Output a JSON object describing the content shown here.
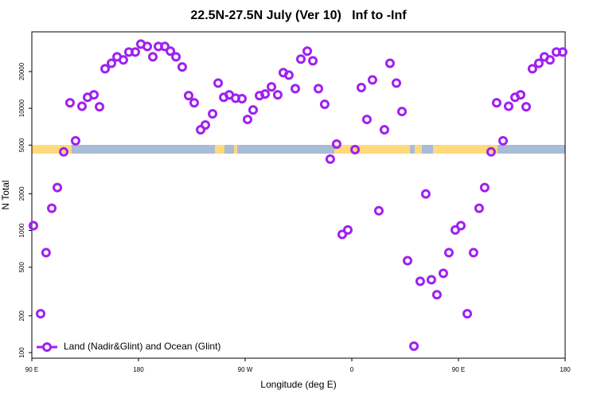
{
  "chart_data": {
    "type": "scatter",
    "title": "22.5N-27.5N July (Ver 10)   Inf to -Inf",
    "x_label": "Longitude (deg E)",
    "y_label": "N Total",
    "x": [
      91.3,
      97.4,
      102,
      106.8,
      111.5,
      116.9,
      122.2,
      126.9,
      132.3,
      137,
      142.4,
      147.1,
      151.8,
      157.2,
      161.9,
      167.2,
      171.9,
      177.3,
      182,
      187.4,
      192.1,
      196.8,
      202.2,
      206.9,
      211.6,
      216.9,
      222.3,
      227,
      232.4,
      236.4,
      242.5,
      247.2,
      251.9,
      256.6,
      261.9,
      267.3,
      272,
      276.7,
      282.1,
      286.8,
      292.2,
      297.5,
      302.2,
      306.9,
      312.3,
      317,
      322.4,
      327.1,
      331.8,
      337.1,
      341.8,
      347.2,
      351.9,
      356.6,
      362.7,
      368,
      372.7,
      377.4,
      382.8,
      387.5,
      392.2,
      397.6,
      402.3,
      407,
      412.4,
      417.7,
      422.4,
      427.1,
      431.8,
      437.2,
      441.9,
      447.3,
      452,
      457.4,
      462.7,
      467.4,
      472.1,
      477.5,
      482.2,
      487.6,
      492.3,
      497.7,
      502.4,
      507.1,
      512.4,
      517.8,
      522.5,
      527.2,
      532.6,
      537.9
    ],
    "series": [
      {
        "name": "Land (Nadir&Glint) and Ocean (Glint)",
        "color": "#a020f0",
        "values": [
          1095,
          208,
          658,
          1520,
          2245,
          4400,
          11100,
          5420,
          10400,
          12300,
          12900,
          10300,
          21100,
          23400,
          26400,
          24900,
          28900,
          28900,
          33600,
          32100,
          26400,
          32100,
          32100,
          29400,
          26400,
          21800,
          12700,
          11100,
          6680,
          7310,
          9020,
          16100,
          12300,
          12900,
          12100,
          12000,
          8110,
          9700,
          12700,
          13100,
          15000,
          12900,
          19600,
          18700,
          14500,
          25300,
          29400,
          24500,
          14500,
          10800,
          3840,
          5100,
          929,
          1010,
          4590,
          14800,
          8110,
          17100,
          1450,
          6680,
          23400,
          16100,
          9420,
          566,
          113,
          384,
          1990,
          395,
          298,
          446,
          658,
          1010,
          1095,
          208,
          658,
          1520,
          2245,
          4400,
          11100,
          5420,
          10400,
          12300,
          12900,
          10300,
          21100,
          23400,
          26400,
          24900,
          28900,
          28900
        ]
      }
    ],
    "xlim": [
      90,
      540
    ],
    "xticks": [
      {
        "value": 90,
        "label": "90 E"
      },
      {
        "value": 180,
        "label": "180"
      },
      {
        "value": 270,
        "label": "90 W"
      },
      {
        "value": 360,
        "label": "0"
      },
      {
        "value": 450,
        "label": "90 E"
      },
      {
        "value": 540,
        "label": "180"
      }
    ],
    "ylim": [
      90,
      42300
    ],
    "ylog": true,
    "yticks": [
      100,
      200,
      500,
      1000,
      2000,
      5000,
      10000,
      20000
    ],
    "legend": "bottom-left"
  }
}
